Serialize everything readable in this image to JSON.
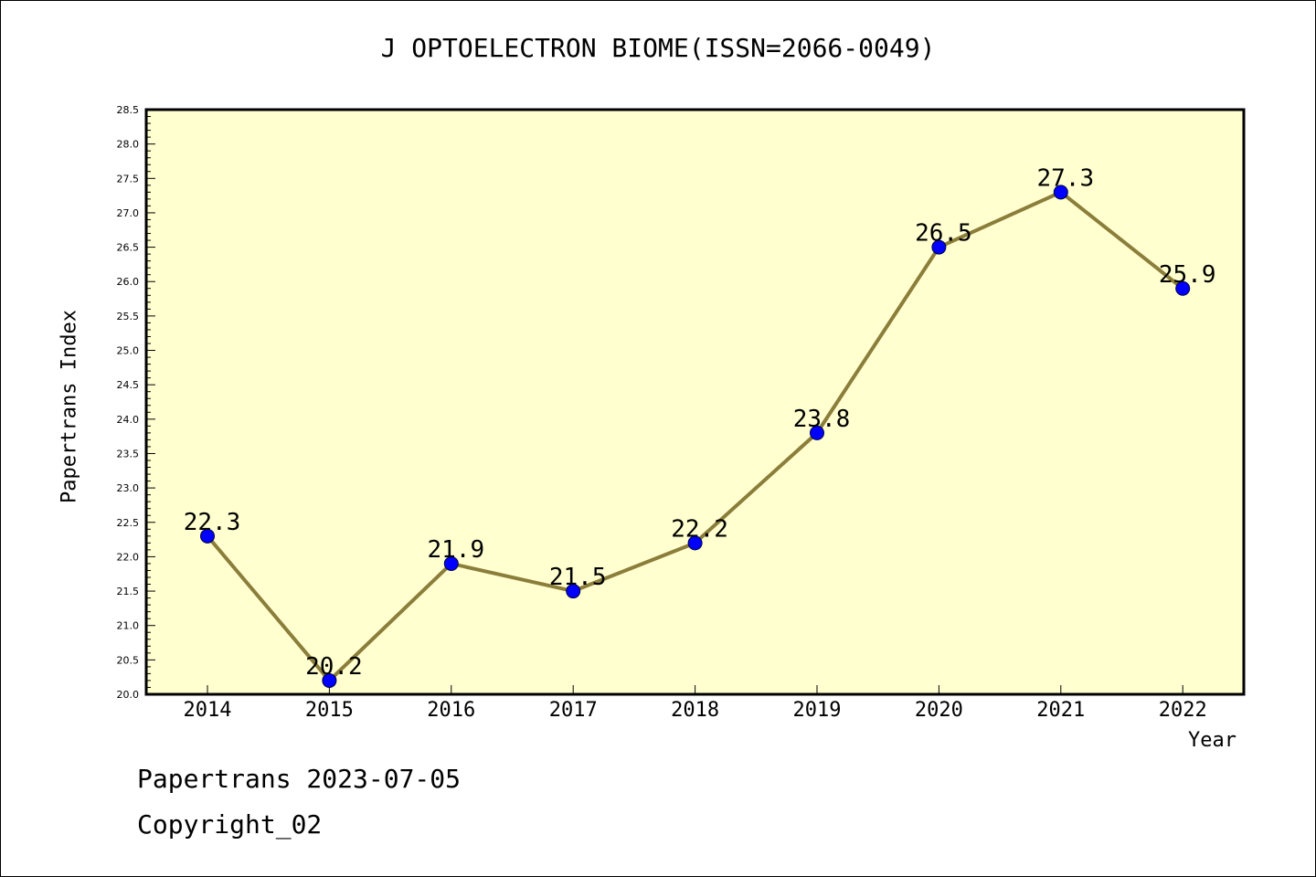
{
  "title": "J OPTOELECTRON BIOME(ISSN=2066-0049)",
  "footer": {
    "line1": "Papertrans 2023-07-05",
    "line2": "Copyright_02"
  },
  "colors": {
    "plot_background": "#ffffd0",
    "line": "#8b7d3a",
    "marker": "#0000ff"
  },
  "chart_data": {
    "type": "line",
    "title": "J OPTOELECTRON BIOME(ISSN=2066-0049)",
    "xlabel": "Year",
    "ylabel": "Papertrans Index",
    "x": [
      "2014",
      "2015",
      "2016",
      "2017",
      "2018",
      "2019",
      "2020",
      "2021",
      "2022"
    ],
    "values": [
      22.3,
      20.2,
      21.9,
      21.5,
      22.2,
      23.8,
      26.5,
      27.3,
      25.9
    ],
    "data_labels": [
      "22.3",
      "20.2",
      "21.9",
      "21.5",
      "22.2",
      "23.8",
      "26.5",
      "27.3",
      "25.9"
    ],
    "ylim": [
      20.0,
      28.5
    ],
    "yticks": [
      "20.0",
      "20.5",
      "21.0",
      "21.5",
      "22.0",
      "22.5",
      "23.0",
      "23.5",
      "24.0",
      "24.5",
      "25.0",
      "25.5",
      "26.0",
      "26.5",
      "27.0",
      "27.5",
      "28.0",
      "28.5"
    ],
    "grid": false,
    "legend": "none"
  }
}
